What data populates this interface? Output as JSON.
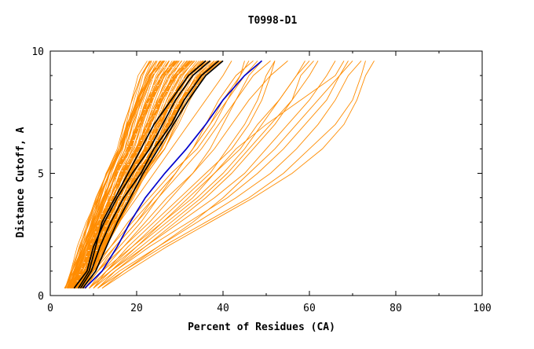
{
  "chart_data": {
    "type": "line",
    "title": "T0998-D1",
    "xlabel": "Percent of Residues (CA)",
    "ylabel": "Distance Cutoff, A",
    "xlim": [
      0,
      100
    ],
    "ylim": [
      0,
      10
    ],
    "x_ticks": [
      "0",
      "20",
      "40",
      "60",
      "80",
      "100"
    ],
    "y_ticks": [
      "0",
      "5",
      "10"
    ],
    "grid": false,
    "colors": {
      "models": "#ff8c00",
      "reference": "#000000",
      "highlight": "#0000cc"
    },
    "y_levels": [
      0.3,
      1.0,
      2.0,
      3.0,
      4.0,
      5.0,
      6.0,
      7.0,
      8.0,
      9.0,
      9.6
    ],
    "band_series": {
      "min_x_at_levels": [
        3.5,
        5.0,
        7.0,
        9.0,
        11.0,
        13.0,
        15.5,
        17.0,
        19.0,
        21.0,
        23.0
      ],
      "max_x_at_levels": [
        7.5,
        10.0,
        13.0,
        16.0,
        19.0,
        22.0,
        26.0,
        29.0,
        32.0,
        36.0,
        40.0
      ],
      "count": 90
    },
    "series": [
      {
        "group": "models",
        "x": [
          6,
          8,
          12,
          16,
          20,
          24,
          28,
          32,
          36,
          40,
          42
        ]
      },
      {
        "group": "models",
        "x": [
          7,
          9,
          14,
          19,
          24,
          29,
          33,
          37,
          40,
          44,
          46
        ]
      },
      {
        "group": "models",
        "x": [
          8,
          11,
          16,
          21,
          25,
          29,
          33,
          36,
          39,
          43,
          47
        ]
      },
      {
        "group": "models",
        "x": [
          7,
          10,
          14,
          18,
          23,
          28,
          34,
          38,
          41,
          45,
          48
        ]
      },
      {
        "group": "models",
        "x": [
          9,
          12,
          17,
          23,
          28,
          33,
          37,
          40,
          43,
          46,
          49
        ]
      },
      {
        "group": "models",
        "x": [
          8,
          11,
          15,
          20,
          25,
          30,
          35,
          39,
          43,
          47,
          51
        ]
      },
      {
        "group": "models",
        "x": [
          10,
          13,
          18,
          24,
          30,
          36,
          42,
          46,
          49,
          51,
          52
        ]
      },
      {
        "group": "models",
        "x": [
          9,
          13,
          20,
          27,
          34,
          40,
          45,
          49,
          53,
          57,
          59
        ]
      },
      {
        "group": "models",
        "x": [
          10,
          14,
          21,
          28,
          35,
          41,
          46,
          51,
          56,
          60,
          62
        ]
      },
      {
        "group": "models",
        "x": [
          9,
          14,
          22,
          30,
          38,
          45,
          50,
          55,
          60,
          64,
          66
        ]
      },
      {
        "group": "models",
        "x": [
          10,
          15,
          23,
          32,
          41,
          48,
          54,
          59,
          64,
          67,
          69
        ]
      },
      {
        "group": "models",
        "x": [
          11,
          16,
          25,
          34,
          43,
          51,
          57,
          62,
          66,
          69,
          72
        ]
      },
      {
        "group": "models",
        "x": [
          12,
          18,
          27,
          37,
          47,
          56,
          63,
          68,
          71,
          73,
          75
        ]
      },
      {
        "group": "models",
        "x": [
          11,
          17,
          26,
          36,
          46,
          54,
          60,
          66,
          70,
          72,
          73
        ]
      },
      {
        "group": "models",
        "x": [
          8,
          12,
          19,
          26,
          32,
          38,
          43,
          50,
          58,
          66,
          68
        ]
      },
      {
        "group": "models",
        "x": [
          9,
          13,
          19,
          25,
          31,
          37,
          41,
          45,
          48,
          50,
          52
        ]
      },
      {
        "group": "models",
        "x": [
          12,
          17,
          25,
          33,
          40,
          46,
          52,
          57,
          62,
          67,
          70
        ]
      },
      {
        "group": "models",
        "x": [
          7,
          10,
          15,
          20,
          24,
          29,
          33,
          37,
          41,
          44,
          45
        ]
      },
      {
        "group": "models",
        "x": [
          9,
          14,
          20,
          26,
          33,
          38,
          44,
          48,
          53,
          57,
          60
        ]
      },
      {
        "group": "models",
        "x": [
          8,
          11,
          17,
          22,
          27,
          33,
          38,
          42,
          46,
          51,
          55
        ]
      },
      {
        "group": "models",
        "x": [
          11,
          15,
          22,
          29,
          36,
          42,
          47,
          52,
          56,
          58,
          61
        ]
      },
      {
        "group": "reference",
        "x": [
          6.5,
          9.0,
          10.5,
          12.0,
          15.0,
          18.0,
          21.0,
          24.0,
          28.0,
          32.0,
          36.0
        ]
      },
      {
        "group": "reference",
        "x": [
          5.5,
          8.5,
          10.0,
          12.5,
          15.5,
          19.0,
          23.0,
          26.0,
          29.0,
          33.0,
          37.0
        ]
      },
      {
        "group": "reference",
        "x": [
          7.0,
          9.5,
          11.5,
          14.0,
          17.0,
          21.0,
          24.0,
          28.0,
          31.0,
          35.0,
          39.0
        ]
      },
      {
        "group": "reference",
        "x": [
          7.5,
          10.5,
          13.0,
          15.5,
          18.5,
          21.5,
          25.0,
          28.5,
          32.0,
          36.0,
          40.0
        ]
      },
      {
        "group": "highlight",
        "x": [
          8.0,
          12.0,
          15.5,
          18.5,
          22.0,
          26.5,
          31.5,
          36.0,
          40.0,
          45.0,
          49.0
        ]
      }
    ]
  }
}
